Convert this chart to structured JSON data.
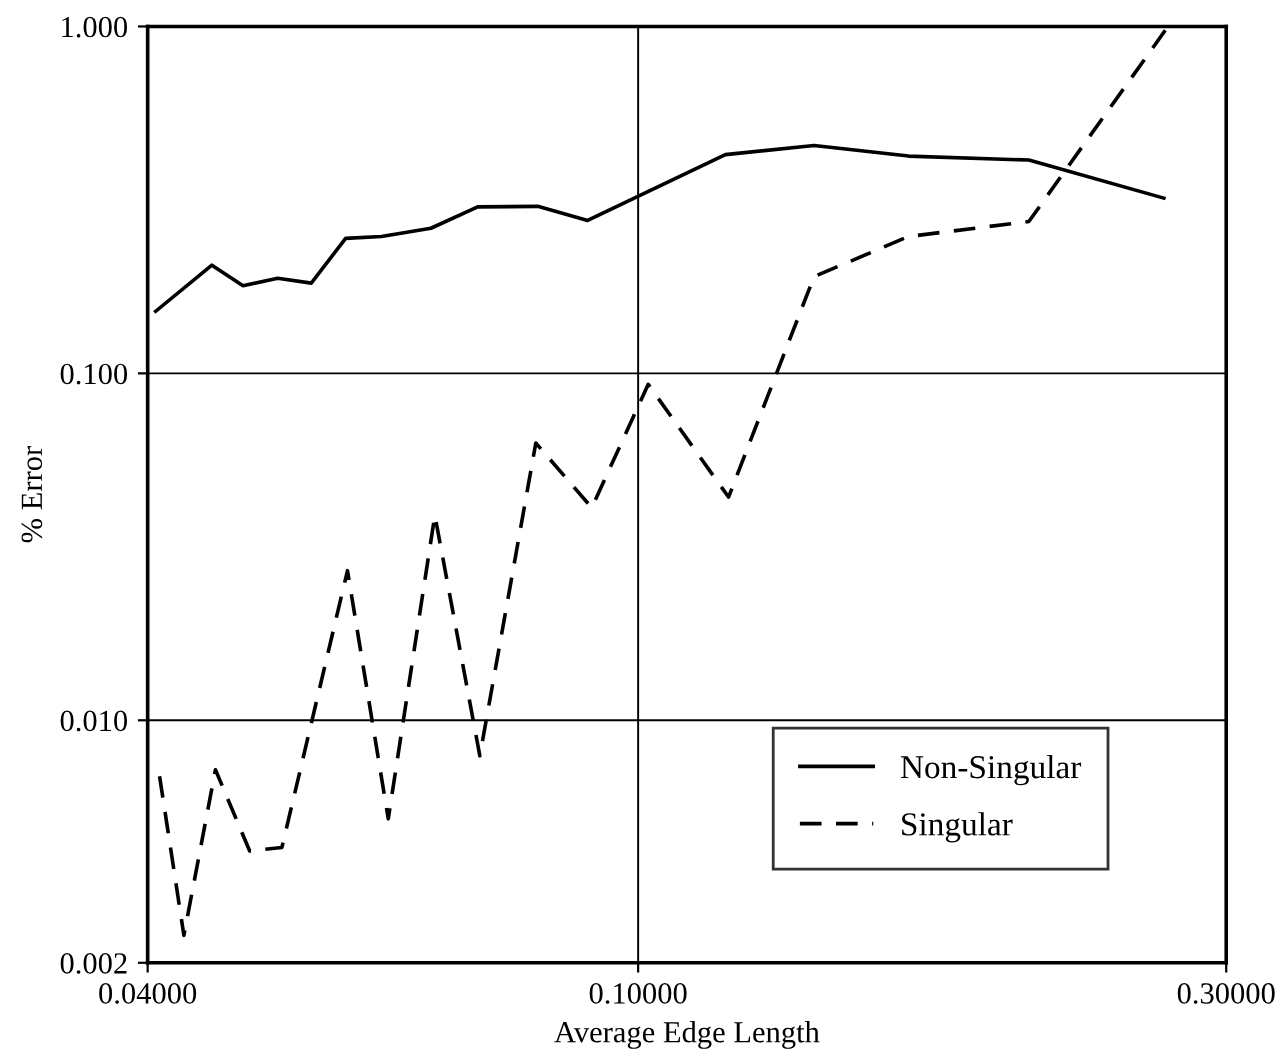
{
  "chart_data": {
    "type": "line",
    "xlabel": "Average Edge Length",
    "ylabel": "% Error",
    "log": "xy",
    "grid": true,
    "legend": "bottom right",
    "marker": "none",
    "xlim": [
      0.04,
      0.3
    ],
    "xticks": [
      {
        "value": 0.04,
        "label": "0.04000"
      },
      {
        "value": 0.1,
        "label": "0.10000"
      },
      {
        "value": 0.3,
        "label": "0.30000"
      }
    ],
    "ylim": [
      0.002,
      1.0
    ],
    "yticks": [
      {
        "value": 0.002,
        "label": "0.002"
      },
      {
        "value": 0.01,
        "label": "0.010"
      },
      {
        "value": 0.1,
        "label": "0.100"
      },
      {
        "value": 1.0,
        "label": "1.000"
      }
    ],
    "series": [
      {
        "name": "Non-Singular",
        "color": "#000000",
        "line_style": "solid",
        "x": [
          0.0406,
          0.0451,
          0.0478,
          0.051,
          0.0543,
          0.0579,
          0.0619,
          0.0679,
          0.0741,
          0.0829,
          0.091,
          0.1177,
          0.1389,
          0.1657,
          0.2075,
          0.267
        ],
        "values": [
          0.151,
          0.205,
          0.179,
          0.188,
          0.182,
          0.245,
          0.248,
          0.262,
          0.302,
          0.303,
          0.276,
          0.427,
          0.454,
          0.423,
          0.412,
          0.32
        ]
      },
      {
        "name": "Singular",
        "color": "#000000",
        "line_style": "dashed",
        "x": [
          0.0409,
          0.0428,
          0.0454,
          0.0484,
          0.0514,
          0.0581,
          0.0627,
          0.0684,
          0.0744,
          0.0826,
          0.0917,
          0.1019,
          0.1184,
          0.1389,
          0.1657,
          0.2075,
          0.268
        ],
        "values": [
          0.0069,
          0.0024,
          0.0072,
          0.0042,
          0.0043,
          0.027,
          0.0052,
          0.039,
          0.0079,
          0.063,
          0.041,
          0.093,
          0.044,
          0.19,
          0.248,
          0.274,
          0.98
        ]
      }
    ]
  }
}
